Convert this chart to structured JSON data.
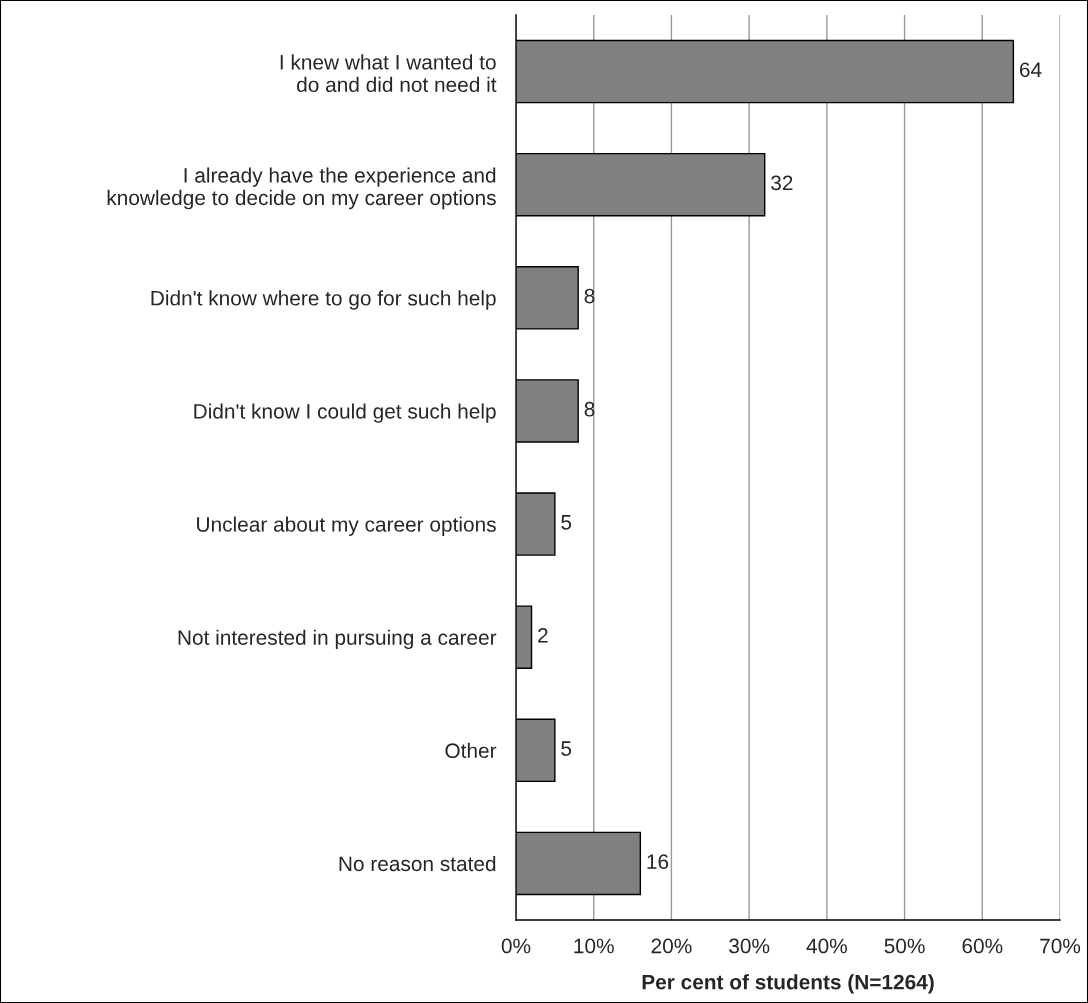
{
  "chart_data": {
    "type": "bar",
    "orientation": "horizontal",
    "categories": [
      "I knew what I wanted to\ndo and did not need it",
      "I already have the experience and\nknowledge to decide on my career options",
      "Didn't know where to go for such help",
      "Didn't know I could get such help",
      "Unclear about my career options",
      "Not interested in pursuing a career",
      "Other",
      "No reason stated"
    ],
    "values": [
      64,
      32,
      8,
      8,
      5,
      2,
      5,
      16
    ],
    "color": "#808080",
    "data_labels": true,
    "xlabel": "Per cent of students (N=1264)",
    "xlim": [
      0,
      70
    ],
    "xticks": [
      {
        "value": 0,
        "label": "0%"
      },
      {
        "value": 10,
        "label": "10%"
      },
      {
        "value": 20,
        "label": "20%"
      },
      {
        "value": 30,
        "label": "30%"
      },
      {
        "value": 40,
        "label": "40%"
      },
      {
        "value": 50,
        "label": "50%"
      },
      {
        "value": 60,
        "label": "60%"
      },
      {
        "value": 70,
        "label": "70%"
      }
    ],
    "grid": "x",
    "legend": false
  }
}
